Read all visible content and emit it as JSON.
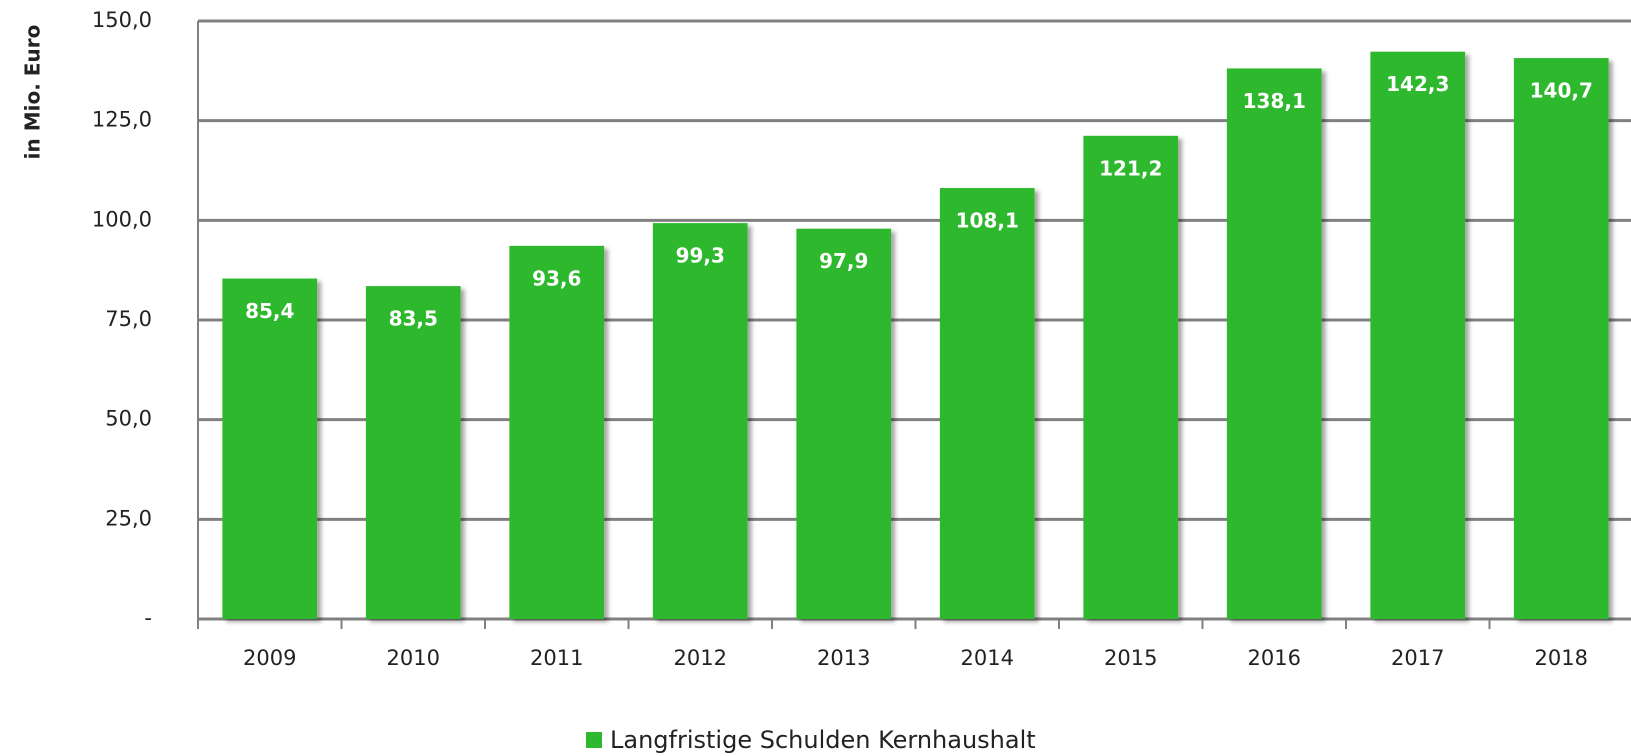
{
  "chart_data": {
    "type": "bar",
    "y_label": "in Mio. Euro",
    "categories": [
      "2009",
      "2010",
      "2011",
      "2012",
      "2013",
      "2014",
      "2015",
      "2016",
      "2017",
      "2018"
    ],
    "series": [
      {
        "name": "Langfristige Schulden Kernhaushalt",
        "color": "#2db82d",
        "values": [
          85.4,
          83.5,
          93.6,
          99.3,
          97.9,
          108.1,
          121.2,
          138.1,
          142.3,
          140.7
        ],
        "value_labels": [
          "85,4",
          "83,5",
          "93,6",
          "99,3",
          "97,9",
          "108,1",
          "121,2",
          "138,1",
          "142,3",
          "140,7"
        ]
      }
    ],
    "ylim": [
      0,
      150
    ],
    "yticks": [
      {
        "value": 0,
        "label": "-"
      },
      {
        "value": 25,
        "label": "25,0"
      },
      {
        "value": 50,
        "label": "50,0"
      },
      {
        "value": 75,
        "label": "75,0"
      },
      {
        "value": 100,
        "label": "100,0"
      },
      {
        "value": 125,
        "label": "125,0"
      },
      {
        "value": 150,
        "label": "150,0"
      }
    ],
    "grid": true,
    "legend": "bottom"
  }
}
